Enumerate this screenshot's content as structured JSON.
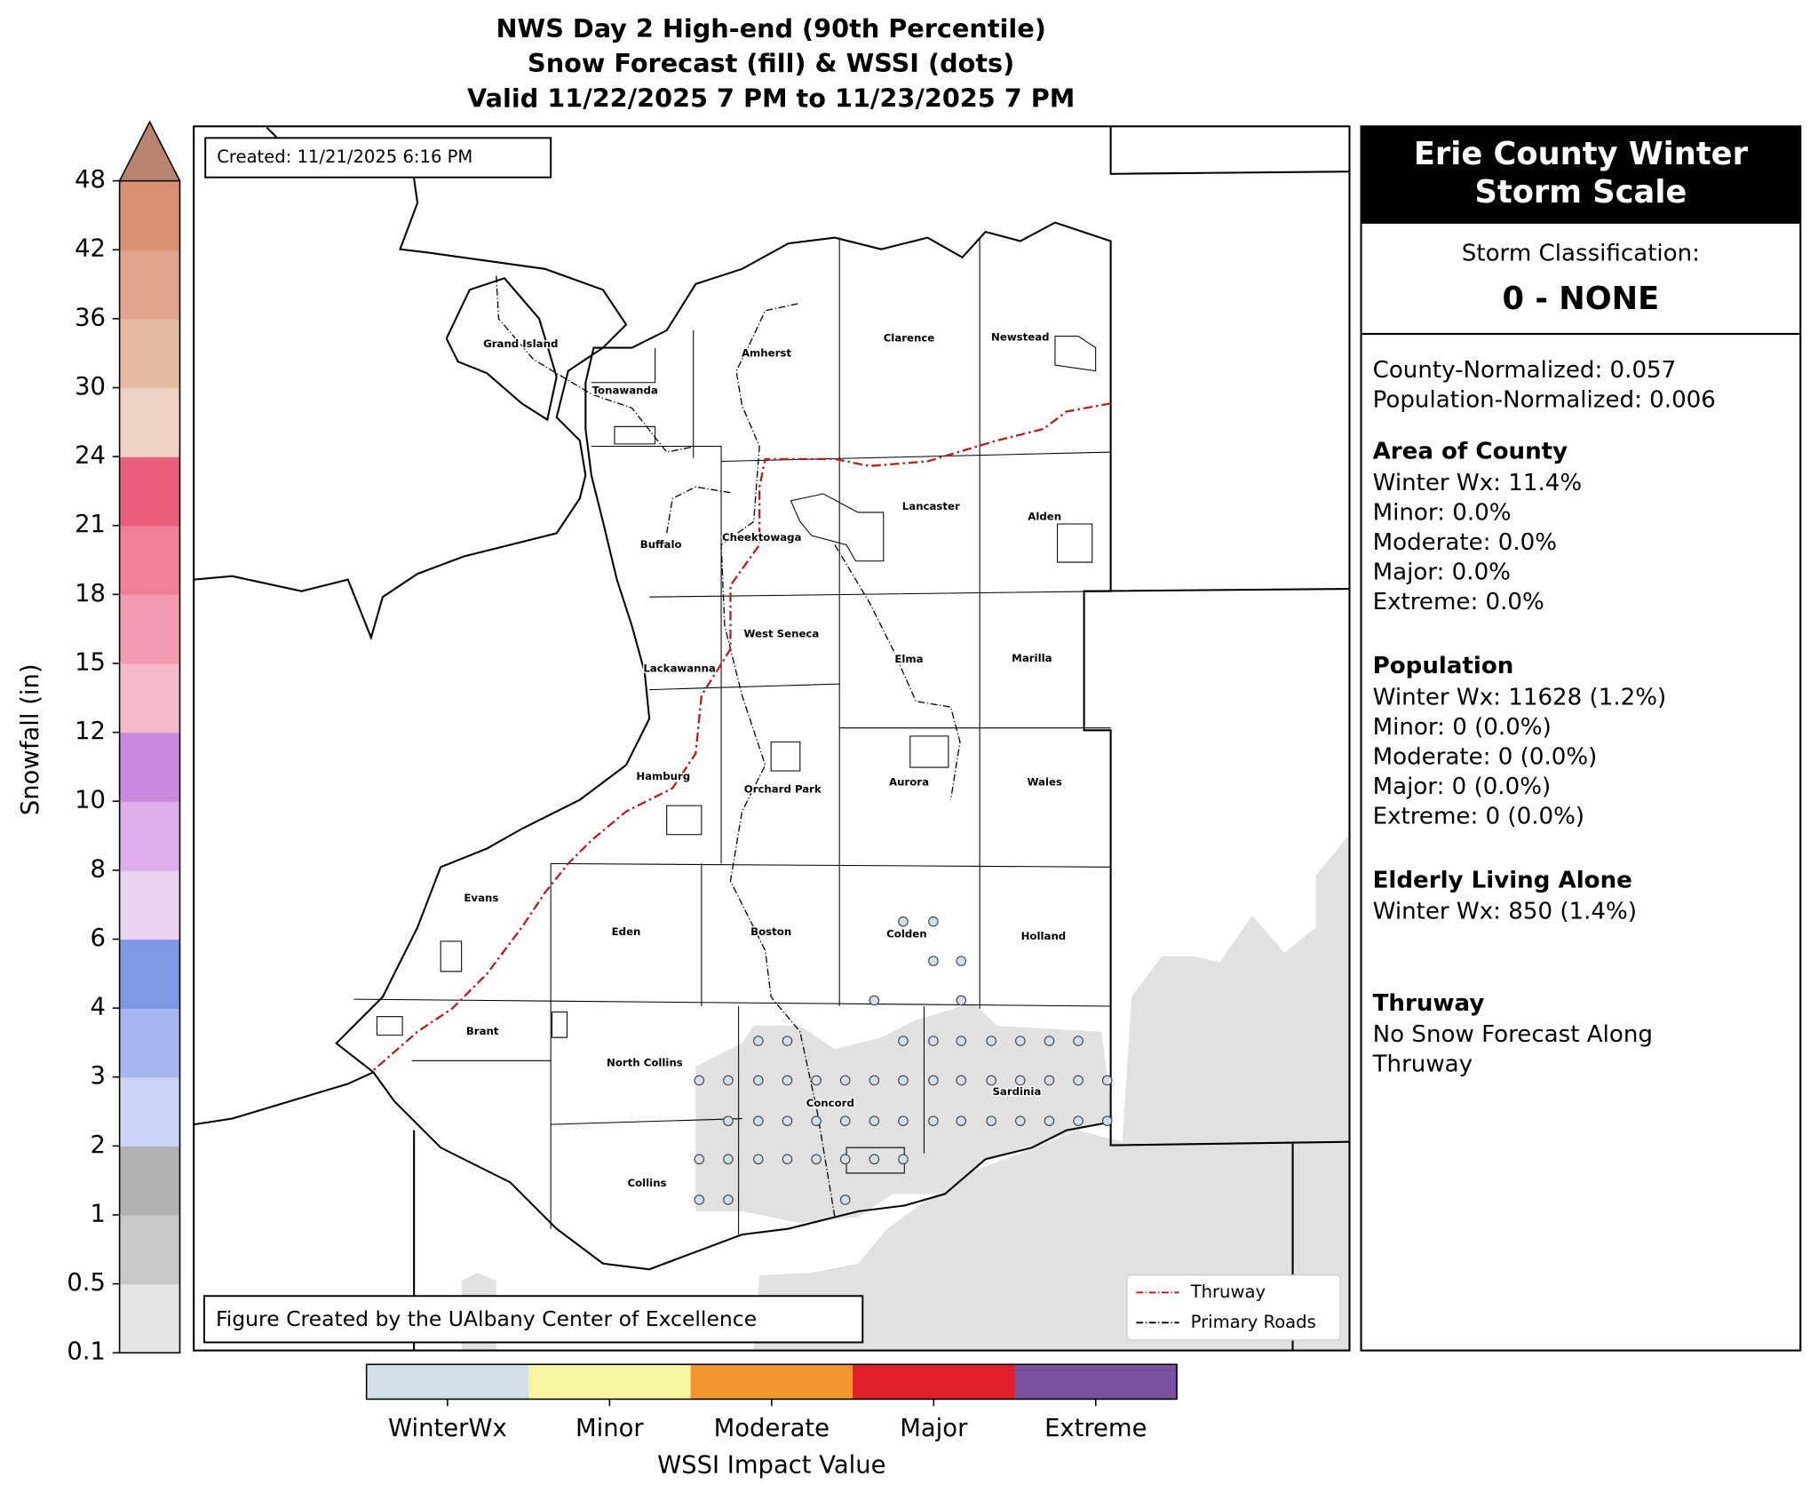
{
  "title": [
    "NWS Day 2 High-end (90th Percentile)",
    "Snow Forecast (fill) & WSSI (dots)",
    "Valid 11/22/2025 7 PM to 11/23/2025 7 PM"
  ],
  "created": "Created: 11/21/2025 6:16 PM",
  "credit": "Figure Created by the UAlbany Center of Excellence",
  "snow_colorbar": {
    "label": "Snowfall (in)",
    "ticks": [
      "0.1",
      "0.5",
      "1",
      "2",
      "3",
      "4",
      "6",
      "8",
      "10",
      "12",
      "15",
      "18",
      "21",
      "24",
      "30",
      "36",
      "42",
      "48"
    ],
    "colors": [
      "#e4e4e4",
      "#c9c9c9",
      "#b1b1b1",
      "#cad4f5",
      "#a6b6ee",
      "#7d96e6",
      "#ebd1f1",
      "#ddacea",
      "#cb89de",
      "#f6b9c9",
      "#f49bb1",
      "#f27f97",
      "#e95e7b",
      "#eed1c5",
      "#e7b9a3",
      "#e0a38b",
      "#d99171"
    ],
    "extend_color": "#b8846f"
  },
  "wssi_colorbar": {
    "label": "WSSI Impact Value",
    "categories": [
      "WinterWx",
      "Minor",
      "Moderate",
      "Major",
      "Extreme"
    ],
    "colors": [
      "#d1dfe6",
      "#f7f59e",
      "#f5952f",
      "#e2202a",
      "#7b519e"
    ]
  },
  "map_legend": [
    {
      "label": "Thruway",
      "color": "#b22222"
    },
    {
      "label": "Primary Roads",
      "color": "#000000"
    }
  ],
  "towns": [
    "Grand Island",
    "Tonawanda",
    "Amherst",
    "Clarence",
    "Newstead",
    "Buffalo",
    "Cheektowaga",
    "Lancaster",
    "Alden",
    "West Seneca",
    "Elma",
    "Marilla",
    "Lackawanna",
    "Hamburg",
    "Orchard Park",
    "Aurora",
    "Wales",
    "Evans",
    "Eden",
    "Boston",
    "Colden",
    "Holland",
    "Brant",
    "North Collins",
    "Sardinia",
    "Concord",
    "Collins"
  ],
  "panel": {
    "title": [
      "Erie County Winter",
      "Storm Scale"
    ],
    "classification_label": "Storm Classification:",
    "classification": "0 - NONE",
    "sections": [
      {
        "lines": [
          "County-Normalized: 0.057",
          "Population-Normalized: 0.006"
        ]
      },
      {
        "heading": "Area of County",
        "lines": [
          "Winter Wx: 11.4%",
          "Minor: 0.0%",
          "Moderate: 0.0%",
          "Major: 0.0%",
          "Extreme: 0.0%"
        ]
      },
      {
        "heading": "Population",
        "lines": [
          "Winter Wx: 11628 (1.2%)",
          "Minor: 0 (0.0%)",
          "Moderate: 0 (0.0%)",
          "Major: 0 (0.0%)",
          "Extreme: 0 (0.0%)"
        ]
      },
      {
        "heading": "Elderly Living Alone",
        "lines": [
          "Winter Wx: 850 (1.4%)"
        ]
      },
      {
        "heading": "Thruway",
        "lines": [
          "No Snow Forecast Along",
          "Thruway"
        ]
      }
    ]
  }
}
